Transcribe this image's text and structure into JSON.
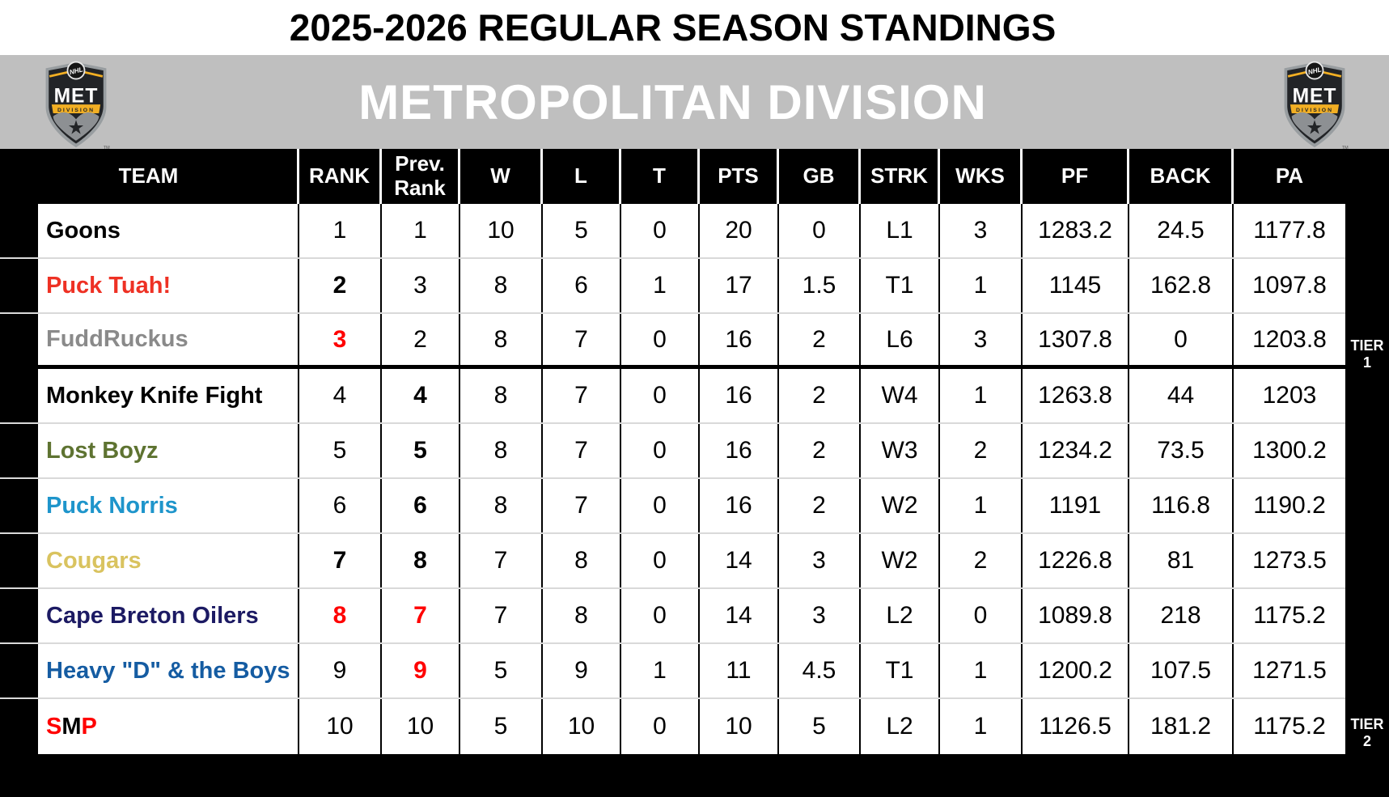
{
  "title": "2025-2026 REGULAR SEASON STANDINGS",
  "division": {
    "name": "METROPOLITAN DIVISION",
    "logo": {
      "roundel_text": "NHL",
      "abbr": "MET",
      "banner": "DIVISION",
      "trademark": "TM"
    }
  },
  "colors": {
    "band_gray": "#bfbfbf",
    "header_black": "#000000",
    "accent_red": "#ff0000",
    "logo_gold": "#f2af23",
    "row_separator": "#d9d9d9"
  },
  "table": {
    "columns": [
      {
        "key": "team",
        "label": "TEAM"
      },
      {
        "key": "rank",
        "label": "RANK"
      },
      {
        "key": "prev",
        "label": "Prev.\nRank"
      },
      {
        "key": "w",
        "label": "W"
      },
      {
        "key": "l",
        "label": "L"
      },
      {
        "key": "t",
        "label": "T"
      },
      {
        "key": "pts",
        "label": "PTS"
      },
      {
        "key": "gb",
        "label": "GB"
      },
      {
        "key": "strk",
        "label": "STRK"
      },
      {
        "key": "wks",
        "label": "WKS"
      },
      {
        "key": "pf",
        "label": "PF"
      },
      {
        "key": "back",
        "label": "BACK"
      },
      {
        "key": "pa",
        "label": "PA"
      }
    ],
    "tier_break_after_row": 3,
    "tiers": [
      {
        "line1": "TIER",
        "line2": "1"
      },
      {
        "line1": "TIER",
        "line2": "2"
      }
    ],
    "rows": [
      {
        "team": "Goons",
        "team_color": "#000000",
        "rank": "1",
        "rank_style": "normal",
        "prev": "1",
        "prev_style": "normal",
        "w": "10",
        "l": "5",
        "t": "0",
        "pts": "20",
        "gb": "0",
        "strk": "L1",
        "wks": "3",
        "pf": "1283.2",
        "back": "24.5",
        "pa": "1177.8"
      },
      {
        "team": "Puck Tuah!",
        "team_color": "#ee3124",
        "rank": "2",
        "rank_style": "bold",
        "prev": "3",
        "prev_style": "normal",
        "w": "8",
        "l": "6",
        "t": "1",
        "pts": "17",
        "gb": "1.5",
        "strk": "T1",
        "wks": "1",
        "pf": "1145",
        "back": "162.8",
        "pa": "1097.8"
      },
      {
        "team": "FuddRuckus",
        "team_color": "#8a8a8a",
        "rank": "3",
        "rank_style": "bold-red",
        "prev": "2",
        "prev_style": "normal",
        "w": "8",
        "l": "7",
        "t": "0",
        "pts": "16",
        "gb": "2",
        "strk": "L6",
        "wks": "3",
        "pf": "1307.8",
        "back": "0",
        "pa": "1203.8"
      },
      {
        "team": "Monkey Knife Fight",
        "team_color": "#000000",
        "rank": "4",
        "rank_style": "normal",
        "prev": "4",
        "prev_style": "bold",
        "w": "8",
        "l": "7",
        "t": "0",
        "pts": "16",
        "gb": "2",
        "strk": "W4",
        "wks": "1",
        "pf": "1263.8",
        "back": "44",
        "pa": "1203"
      },
      {
        "team": "Lost Boyz",
        "team_color": "#5e7331",
        "rank": "5",
        "rank_style": "normal",
        "prev": "5",
        "prev_style": "bold",
        "w": "8",
        "l": "7",
        "t": "0",
        "pts": "16",
        "gb": "2",
        "strk": "W3",
        "wks": "2",
        "pf": "1234.2",
        "back": "73.5",
        "pa": "1300.2"
      },
      {
        "team": "Puck Norris",
        "team_color": "#1e95cb",
        "rank": "6",
        "rank_style": "normal",
        "prev": "6",
        "prev_style": "bold",
        "w": "8",
        "l": "7",
        "t": "0",
        "pts": "16",
        "gb": "2",
        "strk": "W2",
        "wks": "1",
        "pf": "1191",
        "back": "116.8",
        "pa": "1190.2"
      },
      {
        "team": "Cougars",
        "team_color": "#d9c35f",
        "rank": "7",
        "rank_style": "bold",
        "prev": "8",
        "prev_style": "bold",
        "w": "7",
        "l": "8",
        "t": "0",
        "pts": "14",
        "gb": "3",
        "strk": "W2",
        "wks": "2",
        "pf": "1226.8",
        "back": "81",
        "pa": "1273.5"
      },
      {
        "team": "Cape Breton Oilers",
        "team_color": "#1c1a63",
        "rank": "8",
        "rank_style": "bold-red",
        "prev": "7",
        "prev_style": "bold-red",
        "w": "7",
        "l": "8",
        "t": "0",
        "pts": "14",
        "gb": "3",
        "strk": "L2",
        "wks": "0",
        "pf": "1089.8",
        "back": "218",
        "pa": "1175.2"
      },
      {
        "team": "Heavy \"D\" & the Boys",
        "team_color": "#155ca2",
        "rank": "9",
        "rank_style": "normal",
        "prev": "9",
        "prev_style": "bold-red",
        "w": "5",
        "l": "9",
        "t": "1",
        "pts": "11",
        "gb": "4.5",
        "strk": "T1",
        "wks": "1",
        "pf": "1200.2",
        "back": "107.5",
        "pa": "1271.5"
      },
      {
        "team": "SMP",
        "team_segments": [
          {
            "text": "S",
            "color": "#ff0000"
          },
          {
            "text": "M",
            "color": "#000000"
          },
          {
            "text": "P",
            "color": "#ff0000"
          }
        ],
        "team_color": "#ff0000",
        "rank": "10",
        "rank_style": "normal",
        "prev": "10",
        "prev_style": "normal",
        "w": "5",
        "l": "10",
        "t": "0",
        "pts": "10",
        "gb": "5",
        "strk": "L2",
        "wks": "1",
        "pf": "1126.5",
        "back": "181.2",
        "pa": "1175.2"
      }
    ]
  }
}
